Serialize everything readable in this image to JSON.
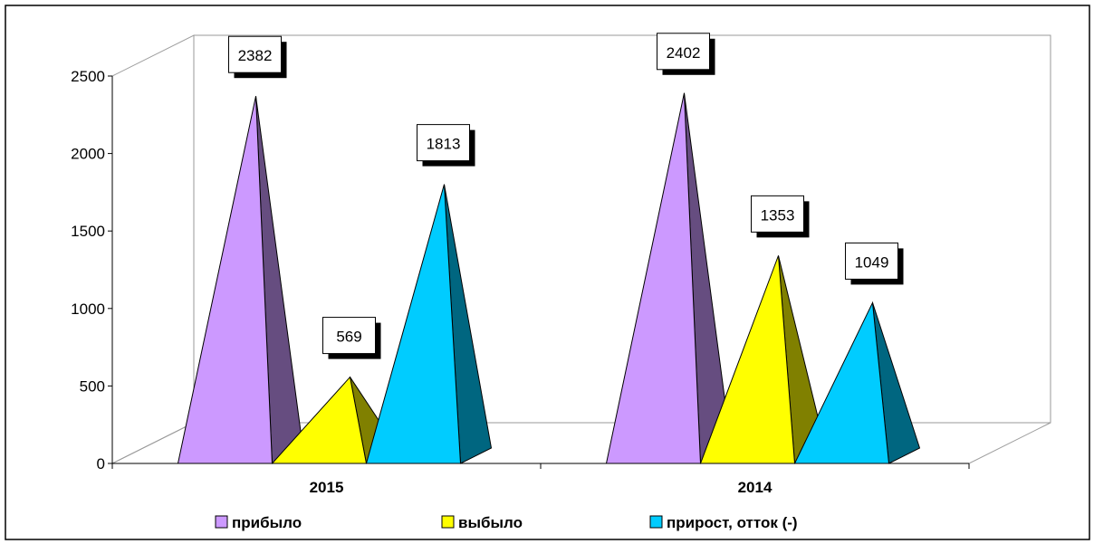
{
  "chart_data": {
    "type": "bar",
    "style": "3d-pyramid",
    "categories": [
      "2015",
      "2014"
    ],
    "series": [
      {
        "name": "прибыло",
        "values": [
          2382,
          2402
        ],
        "color": "#cc99ff",
        "side_color": "#664d80"
      },
      {
        "name": "выбыло",
        "values": [
          569,
          1353
        ],
        "color": "#ffff00",
        "side_color": "#808000"
      },
      {
        "name": "прирост, отток (-)",
        "values": [
          1813,
          1049
        ],
        "color": "#00ccff",
        "side_color": "#006680"
      }
    ],
    "yticks": [
      "0",
      "500",
      "1000",
      "1500",
      "2000",
      "2500"
    ],
    "ylim": [
      0,
      2500
    ],
    "grid": false,
    "legend": "bottom",
    "data_labels": true
  }
}
